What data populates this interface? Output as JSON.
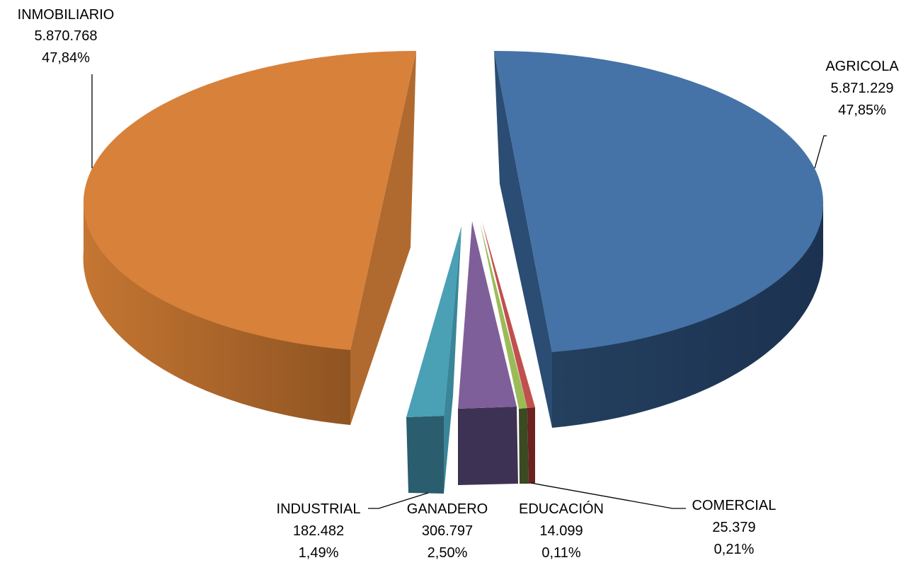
{
  "chart_data": {
    "type": "pie",
    "style": "3d-exploded",
    "start": "top, clockwise",
    "slices": [
      {
        "label": "AGRICOLA",
        "value": "5.871.229",
        "percent": "47,85%",
        "numeric": 5871229,
        "pct": 47.85,
        "color": "#4573a7"
      },
      {
        "label": "COMERCIAL",
        "value": "25.379",
        "percent": "0,21%",
        "numeric": 25379,
        "pct": 0.21,
        "color": "#c0504d"
      },
      {
        "label": "EDUCACIÓN",
        "value": "14.099",
        "percent": "0,11%",
        "numeric": 14099,
        "pct": 0.11,
        "color": "#9bbb59"
      },
      {
        "label": "GANADERO",
        "value": "306.797",
        "percent": "2,50%",
        "numeric": 306797,
        "pct": 2.5,
        "color": "#7f5f9a"
      },
      {
        "label": "INDUSTRIAL",
        "value": "182.482",
        "percent": "1,49%",
        "numeric": 182482,
        "pct": 1.49,
        "color": "#4aa0b5"
      },
      {
        "label": "INMOBILIARIO",
        "value": "5.870.768",
        "percent": "47,84%",
        "numeric": 5870768,
        "pct": 47.84,
        "color": "#d8813b"
      }
    ],
    "legend": "none",
    "title": ""
  }
}
